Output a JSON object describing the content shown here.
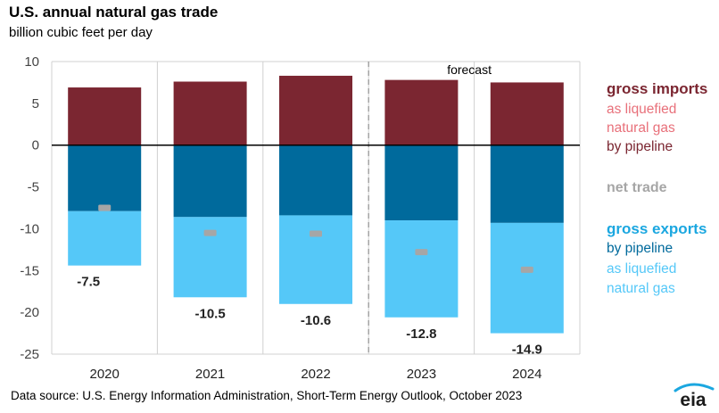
{
  "chart_data": {
    "type": "bar",
    "title": "U.S. annual natural gas trade",
    "subtitle": "billion cubic feet per day",
    "categories": [
      "2020",
      "2021",
      "2022",
      "2023",
      "2024"
    ],
    "ylim": [
      -25,
      10
    ],
    "yticks": [
      10,
      5,
      0,
      -5,
      -10,
      -15,
      -20,
      -25
    ],
    "grid": true,
    "stacked": true,
    "series": [
      {
        "name": "gross imports by pipeline",
        "color": "#7b2631",
        "values": [
          6.9,
          7.6,
          8.3,
          7.8,
          7.5
        ]
      },
      {
        "name": "gross imports as liquefied natural gas",
        "color": "#e8707a",
        "values": [
          0.0,
          0.0,
          0.0,
          0.0,
          0.0
        ]
      },
      {
        "name": "gross exports by pipeline",
        "color": "#006a9c",
        "values": [
          -7.9,
          -8.6,
          -8.4,
          -9.0,
          -9.3
        ]
      },
      {
        "name": "gross exports as liquefied natural gas",
        "color": "#55c8f8",
        "values": [
          -6.5,
          -9.6,
          -10.6,
          -11.6,
          -13.2
        ]
      }
    ],
    "net_trade": {
      "name": "net trade",
      "color": "#a6a6a6",
      "values": [
        -7.5,
        -10.5,
        -10.6,
        -12.8,
        -14.9
      ]
    },
    "data_labels": [
      "-7.5",
      "-10.5",
      "-10.6",
      "-12.8",
      "-14.9"
    ],
    "annotation": {
      "text": "forecast",
      "after_category": "2022"
    }
  },
  "legend": {
    "imports_header": "gross imports",
    "imports_lng": "as liquefied",
    "imports_lng2": "natural gas",
    "imports_pipeline": "by pipeline",
    "net_trade": "net trade",
    "exports_header": "gross exports",
    "exports_pipeline": "by pipeline",
    "exports_lng": "as liquefied",
    "exports_lng2": "natural gas"
  },
  "colors": {
    "imports_header": "#7b2631",
    "imports_lng": "#e8707a",
    "imports_pipeline": "#7b2631",
    "net_trade": "#a6a6a6",
    "exports_header": "#1ba7e0",
    "exports_pipeline": "#006a9c",
    "exports_lng": "#55c8f8"
  },
  "source": "Data source: U.S. Energy Information Administration, Short-Term Energy Outlook, October 2023",
  "logo_text": "eia"
}
